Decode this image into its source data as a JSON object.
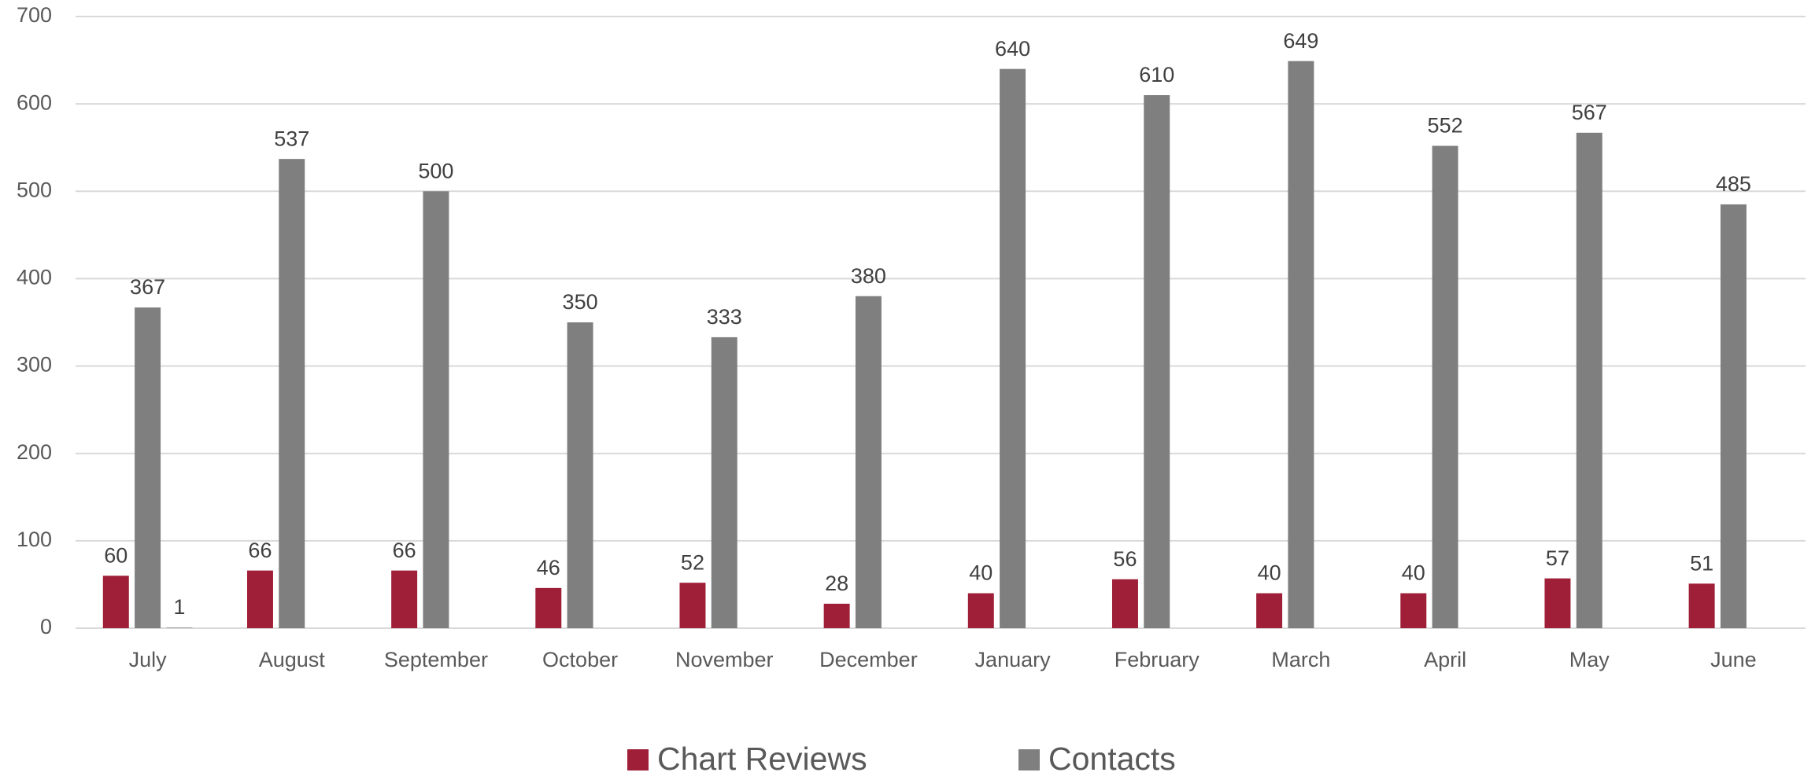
{
  "chart_data": {
    "type": "bar",
    "categories": [
      "July",
      "August",
      "September",
      "October",
      "November",
      "December",
      "January",
      "February",
      "March",
      "April",
      "May",
      "June"
    ],
    "series": [
      {
        "name": "Chart Reviews",
        "color": "#9e1f37",
        "values": [
          60,
          66,
          66,
          46,
          52,
          28,
          40,
          56,
          40,
          40,
          57,
          51
        ]
      },
      {
        "name": "Contacts",
        "color": "#7f7f7f",
        "values": [
          367,
          537,
          500,
          350,
          333,
          380,
          640,
          610,
          649,
          552,
          567,
          485
        ]
      },
      {
        "color": "#a5a5a5",
        "values": [
          1,
          null,
          null,
          null,
          null,
          null,
          null,
          null,
          null,
          null,
          null,
          null
        ]
      }
    ],
    "ylim": [
      0,
      700
    ],
    "yticks": [
      0,
      100,
      200,
      300,
      400,
      500,
      600,
      700
    ],
    "grid": true,
    "legend": "bottom"
  }
}
